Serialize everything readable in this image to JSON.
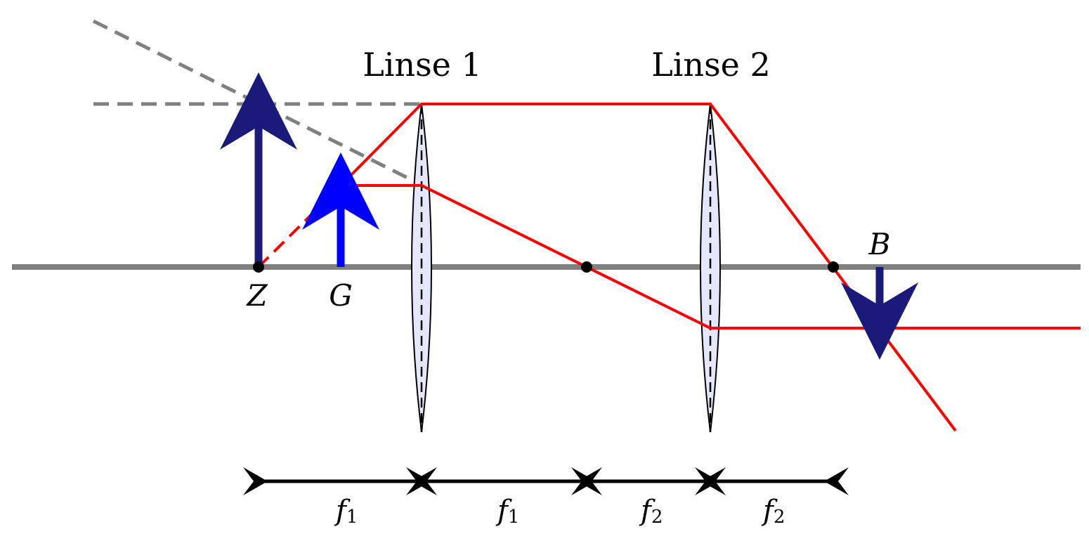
{
  "lenses": [
    {
      "label": "Linse 1"
    },
    {
      "label": "Linse 2"
    }
  ],
  "points": {
    "Z": "Z",
    "G": "G",
    "B": "B"
  },
  "dimensions": [
    {
      "symbol": "f",
      "sub": "1"
    },
    {
      "symbol": "f",
      "sub": "1"
    },
    {
      "symbol": "f",
      "sub": "2"
    },
    {
      "symbol": "f",
      "sub": "2"
    }
  ],
  "colors": {
    "axis": "#808080",
    "ray": "#ff0000",
    "construction": "#808080",
    "object_arrow": "#0000ff",
    "image_arrow": "#1a1a7a",
    "lens_fill": "#e6e6ff"
  }
}
